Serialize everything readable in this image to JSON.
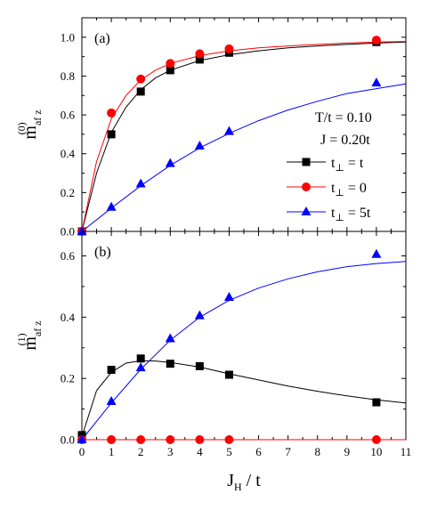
{
  "chart_data": [
    {
      "panel": "(a)",
      "type": "scatter",
      "ylabel": {
        "main": "m",
        "sub": "af z",
        "sup": "(0)"
      },
      "xlim": [
        0,
        11
      ],
      "ylim": [
        0,
        1.1
      ],
      "xticks": [
        0,
        1,
        2,
        3,
        4,
        5,
        6,
        7,
        8,
        9,
        10,
        11
      ],
      "yticks": [
        0.0,
        0.2,
        0.4,
        0.6,
        0.8,
        1.0
      ],
      "ytick_labels": [
        "0.0",
        "0.2",
        "0.4",
        "0.6",
        "0.8",
        "1.0"
      ],
      "annotations": [
        "T/t = 0.10",
        "J = 0.20t"
      ],
      "legend_placement": "right",
      "series": [
        {
          "legend_prefix": "t",
          "legend_sub": "⊥",
          "legend_suffix": " = t",
          "color": "#000000",
          "marker": "square",
          "x": [
            0,
            1,
            2,
            3,
            4,
            5,
            10
          ],
          "y": [
            0.0,
            0.5,
            0.72,
            0.83,
            0.885,
            0.92,
            0.975
          ],
          "fit": [
            [
              0,
              0
            ],
            [
              0.5,
              0.3
            ],
            [
              1,
              0.51
            ],
            [
              1.5,
              0.64
            ],
            [
              2,
              0.73
            ],
            [
              2.5,
              0.79
            ],
            [
              3,
              0.83
            ],
            [
              4,
              0.88
            ],
            [
              5,
              0.91
            ],
            [
              6,
              0.93
            ],
            [
              7,
              0.945
            ],
            [
              8,
              0.955
            ],
            [
              9,
              0.963
            ],
            [
              10,
              0.97
            ],
            [
              11,
              0.975
            ]
          ]
        },
        {
          "legend_prefix": "t",
          "legend_sub": "⊥",
          "legend_suffix": " = 0",
          "color": "#ff0000",
          "marker": "circle",
          "x": [
            0,
            1,
            2,
            3,
            4,
            5,
            10
          ],
          "y": [
            0.0,
            0.61,
            0.785,
            0.865,
            0.915,
            0.94,
            0.985
          ],
          "fit": [
            [
              0,
              0
            ],
            [
              0.5,
              0.36
            ],
            [
              1,
              0.58
            ],
            [
              1.5,
              0.7
            ],
            [
              2,
              0.78
            ],
            [
              2.5,
              0.83
            ],
            [
              3,
              0.865
            ],
            [
              4,
              0.905
            ],
            [
              5,
              0.93
            ],
            [
              6,
              0.945
            ],
            [
              7,
              0.955
            ],
            [
              8,
              0.963
            ],
            [
              9,
              0.97
            ],
            [
              10,
              0.975
            ],
            [
              11,
              0.978
            ]
          ]
        },
        {
          "legend_prefix": "t",
          "legend_sub": "⊥",
          "legend_suffix": " = 5t",
          "color": "#0000ff",
          "marker": "triangle",
          "x": [
            0,
            1,
            2,
            3,
            4,
            5,
            10
          ],
          "y": [
            0.0,
            0.125,
            0.245,
            0.35,
            0.44,
            0.515,
            0.765
          ],
          "fit": [
            [
              0,
              0
            ],
            [
              1,
              0.12
            ],
            [
              2,
              0.235
            ],
            [
              3,
              0.34
            ],
            [
              4,
              0.43
            ],
            [
              5,
              0.505
            ],
            [
              6,
              0.57
            ],
            [
              7,
              0.625
            ],
            [
              8,
              0.67
            ],
            [
              9,
              0.71
            ],
            [
              10,
              0.735
            ],
            [
              11,
              0.76
            ]
          ]
        }
      ]
    },
    {
      "panel": "(b)",
      "type": "scatter",
      "ylabel": {
        "main": "m",
        "sub": "af z",
        "sup": "(1)"
      },
      "xlabel": {
        "main": "J",
        "sub": "H",
        "rest": " / t"
      },
      "xlim": [
        0,
        11
      ],
      "ylim": [
        0,
        0.68
      ],
      "xticks": [
        0,
        1,
        2,
        3,
        4,
        5,
        6,
        7,
        8,
        9,
        10,
        11
      ],
      "yticks": [
        0.0,
        0.2,
        0.4,
        0.6
      ],
      "ytick_labels": [
        "0.0",
        "0.2",
        "0.4",
        "0.6"
      ],
      "series": [
        {
          "color": "#000000",
          "marker": "square",
          "x": [
            0,
            1,
            2,
            3,
            4,
            5,
            10
          ],
          "y": [
            0.015,
            0.228,
            0.265,
            0.248,
            0.24,
            0.212,
            0.122
          ],
          "fit": [
            [
              0,
              0.01
            ],
            [
              0.5,
              0.16
            ],
            [
              1,
              0.22
            ],
            [
              1.5,
              0.25
            ],
            [
              2,
              0.258
            ],
            [
              2.5,
              0.257
            ],
            [
              3,
              0.252
            ],
            [
              4,
              0.237
            ],
            [
              5,
              0.215
            ],
            [
              6,
              0.195
            ],
            [
              7,
              0.175
            ],
            [
              8,
              0.158
            ],
            [
              9,
              0.143
            ],
            [
              10,
              0.13
            ],
            [
              11,
              0.12
            ]
          ]
        },
        {
          "color": "#ff0000",
          "marker": "circle",
          "x": [
            0,
            1,
            2,
            3,
            4,
            5,
            10
          ],
          "y": [
            0.0,
            0.0,
            0.0,
            0.0,
            0.0,
            0.0,
            0.0
          ],
          "fit": [
            [
              0,
              0
            ],
            [
              11,
              0
            ]
          ]
        },
        {
          "color": "#0000ff",
          "marker": "triangle",
          "x": [
            0,
            1,
            2,
            3,
            4,
            5,
            10
          ],
          "y": [
            0.0,
            0.125,
            0.235,
            0.33,
            0.405,
            0.465,
            0.605
          ],
          "fit": [
            [
              0,
              0
            ],
            [
              1,
              0.12
            ],
            [
              2,
              0.23
            ],
            [
              3,
              0.325
            ],
            [
              4,
              0.4
            ],
            [
              5,
              0.455
            ],
            [
              6,
              0.495
            ],
            [
              7,
              0.525
            ],
            [
              8,
              0.548
            ],
            [
              9,
              0.565
            ],
            [
              10,
              0.575
            ],
            [
              11,
              0.582
            ]
          ]
        }
      ]
    }
  ]
}
